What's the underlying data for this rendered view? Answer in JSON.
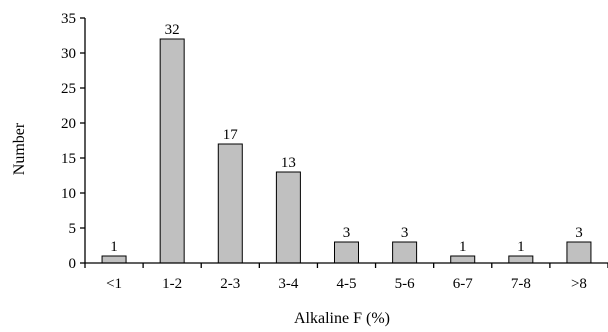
{
  "chart_data": {
    "type": "bar",
    "categories": [
      "<1",
      "1-2",
      "2-3",
      "3-4",
      "4-5",
      "5-6",
      "6-7",
      "7-8",
      ">8"
    ],
    "values": [
      1,
      32,
      17,
      13,
      3,
      3,
      1,
      1,
      3
    ],
    "data_labels": [
      "1",
      "32",
      "17",
      "13",
      "3",
      "3",
      "1",
      "1",
      "3"
    ],
    "xlabel": "Alkaline F (%)",
    "ylabel": "Number",
    "ylim": [
      0,
      35
    ],
    "yticks": [
      0,
      5,
      10,
      15,
      20,
      25,
      30,
      35
    ],
    "ytick_labels": [
      "0",
      "5",
      "10",
      "15",
      "20",
      "25",
      "30",
      "35"
    ],
    "bar_color": "#c0c0c0",
    "grid": false,
    "legend": "none"
  }
}
